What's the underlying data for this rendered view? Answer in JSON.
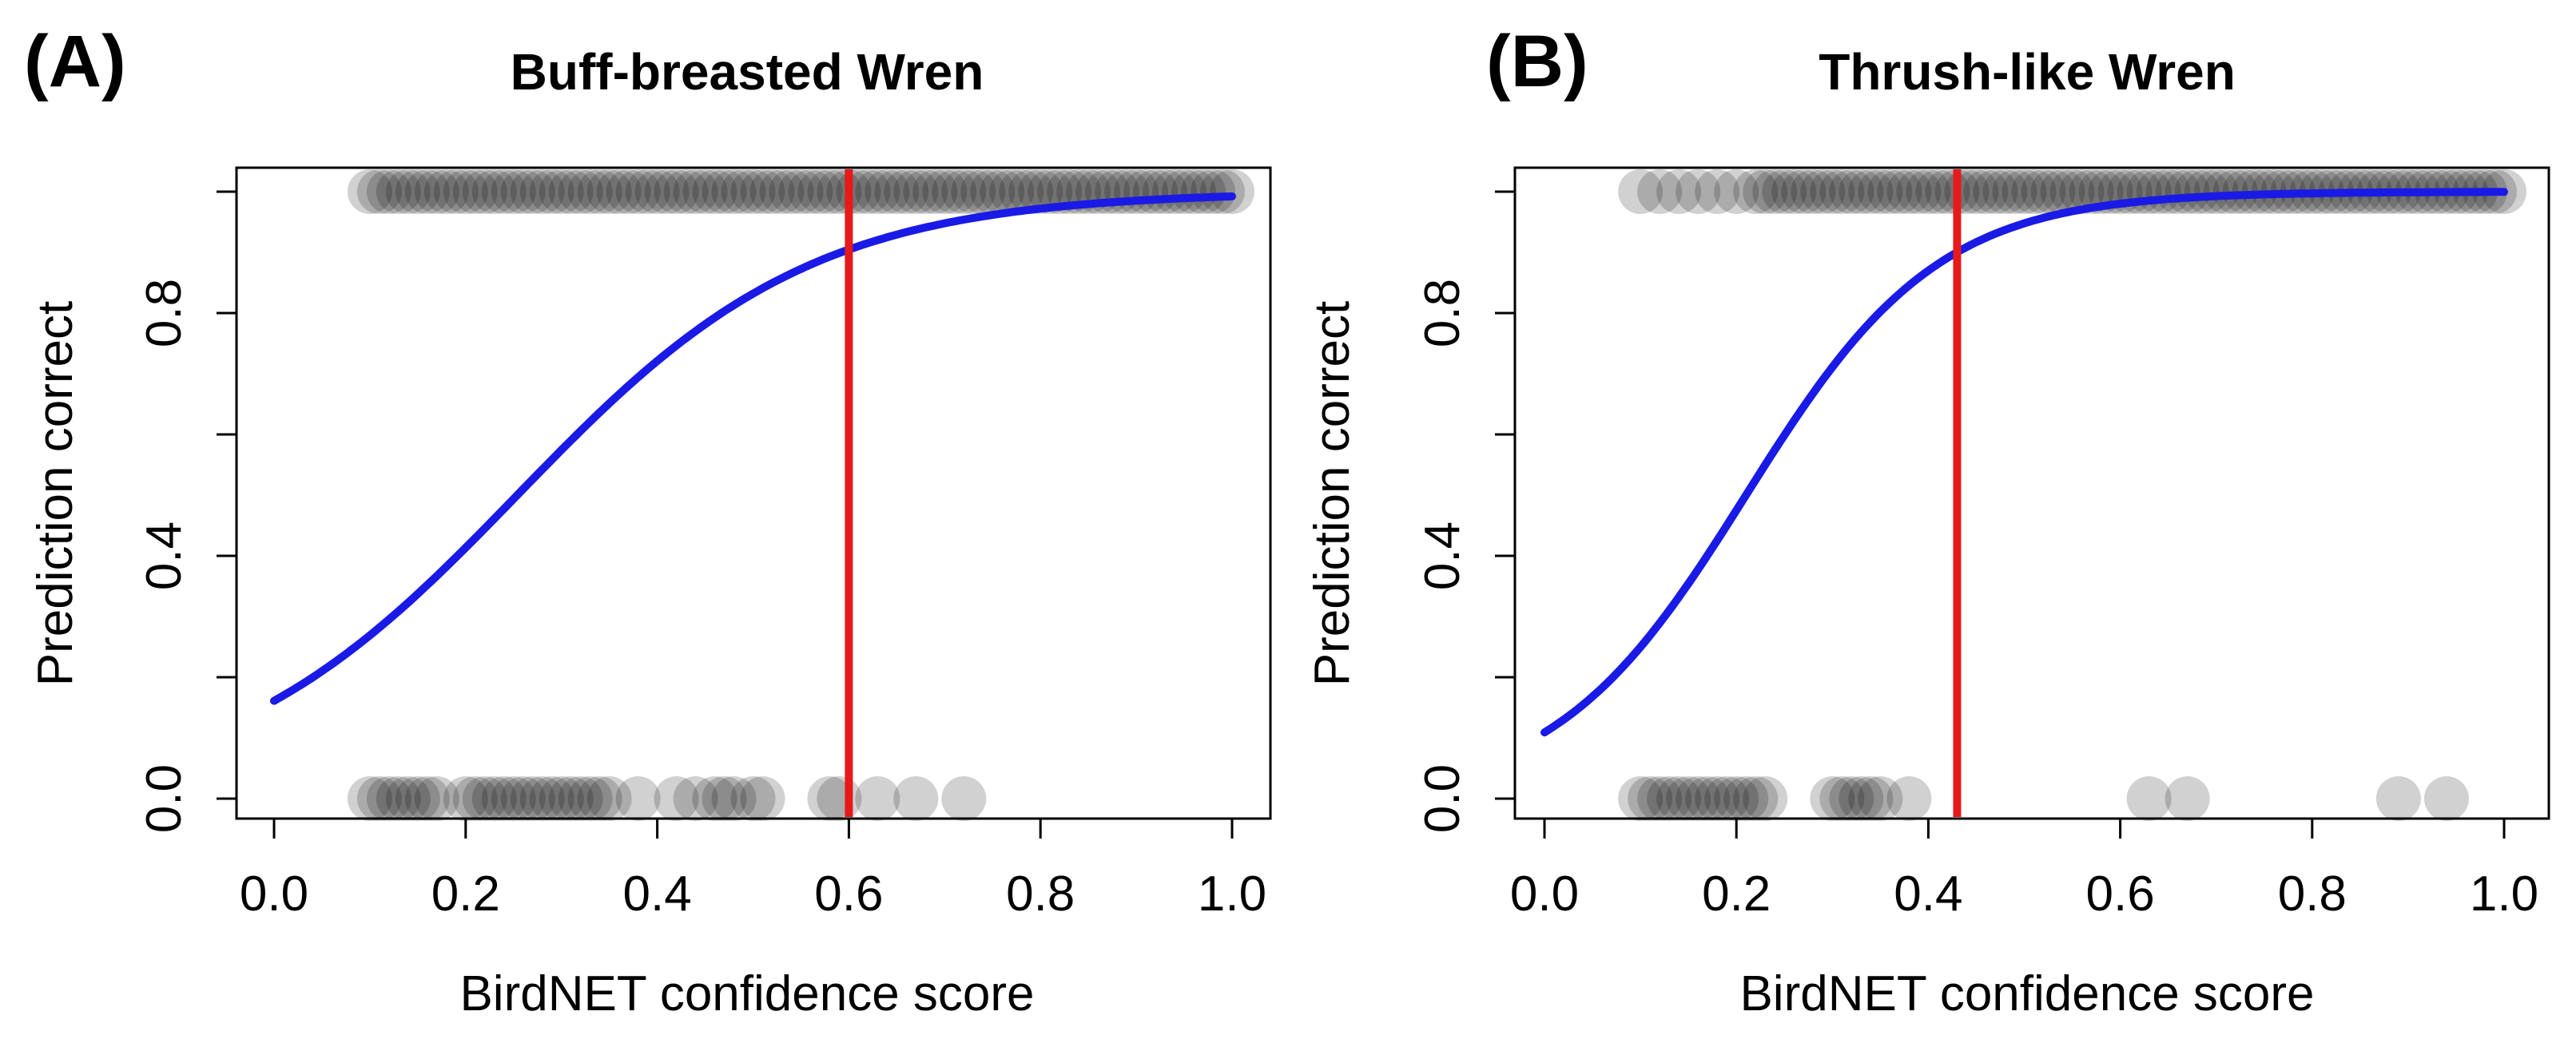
{
  "chart_data": [
    {
      "type": "scatter",
      "panel_label": "(A)",
      "title": "Buff-breasted Wren",
      "xlabel": "BirdNET confidence score",
      "ylabel": "Prediction correct",
      "xlim": [
        0,
        1
      ],
      "ylim": [
        0,
        1
      ],
      "x_ticks": [
        "0.0",
        "0.2",
        "0.4",
        "0.6",
        "0.8",
        "1.0"
      ],
      "y_ticks_labeled": [
        "0.0",
        "0.4",
        "0.8"
      ],
      "threshold_x": 0.6,
      "logistic_fit": {
        "intercept": -1.65,
        "slope": 6.5
      },
      "points_correct": [
        0.1,
        0.11,
        0.12,
        0.13,
        0.14,
        0.15,
        0.16,
        0.17,
        0.18,
        0.19,
        0.2,
        0.21,
        0.22,
        0.23,
        0.24,
        0.25,
        0.26,
        0.27,
        0.28,
        0.29,
        0.3,
        0.31,
        0.32,
        0.33,
        0.34,
        0.35,
        0.36,
        0.37,
        0.38,
        0.39,
        0.4,
        0.41,
        0.42,
        0.43,
        0.44,
        0.45,
        0.46,
        0.47,
        0.48,
        0.49,
        0.5,
        0.51,
        0.52,
        0.53,
        0.54,
        0.55,
        0.56,
        0.57,
        0.58,
        0.59,
        0.6,
        0.61,
        0.62,
        0.63,
        0.64,
        0.65,
        0.66,
        0.67,
        0.68,
        0.69,
        0.7,
        0.71,
        0.72,
        0.73,
        0.74,
        0.75,
        0.76,
        0.77,
        0.78,
        0.79,
        0.8,
        0.81,
        0.82,
        0.83,
        0.84,
        0.85,
        0.86,
        0.87,
        0.88,
        0.89,
        0.9,
        0.91,
        0.92,
        0.93,
        0.94,
        0.95,
        0.96,
        0.97,
        0.98,
        0.99,
        1.0
      ],
      "points_incorrect": [
        0.1,
        0.11,
        0.12,
        0.13,
        0.14,
        0.15,
        0.16,
        0.17,
        0.2,
        0.21,
        0.22,
        0.23,
        0.24,
        0.25,
        0.26,
        0.27,
        0.28,
        0.29,
        0.3,
        0.31,
        0.32,
        0.33,
        0.34,
        0.35,
        0.38,
        0.42,
        0.44,
        0.46,
        0.47,
        0.48,
        0.5,
        0.51,
        0.58,
        0.59,
        0.63,
        0.67,
        0.72
      ]
    },
    {
      "type": "scatter",
      "panel_label": "(B)",
      "title": "Thrush-like Wren",
      "xlabel": "BirdNET confidence score",
      "ylabel": "Prediction correct",
      "xlim": [
        0,
        1
      ],
      "ylim": [
        0,
        1
      ],
      "x_ticks": [
        "0.0",
        "0.2",
        "0.4",
        "0.6",
        "0.8",
        "1.0"
      ],
      "y_ticks_labeled": [
        "0.0",
        "0.4",
        "0.8"
      ],
      "threshold_x": 0.43,
      "logistic_fit": {
        "intercept": -2.1,
        "slope": 10.0
      },
      "points_correct": [
        0.1,
        0.12,
        0.14,
        0.16,
        0.18,
        0.2,
        0.22,
        0.23,
        0.24,
        0.25,
        0.26,
        0.27,
        0.28,
        0.29,
        0.3,
        0.31,
        0.32,
        0.33,
        0.34,
        0.35,
        0.36,
        0.37,
        0.38,
        0.39,
        0.4,
        0.41,
        0.42,
        0.43,
        0.44,
        0.45,
        0.46,
        0.47,
        0.48,
        0.49,
        0.5,
        0.51,
        0.52,
        0.53,
        0.54,
        0.55,
        0.56,
        0.57,
        0.58,
        0.59,
        0.6,
        0.61,
        0.62,
        0.63,
        0.64,
        0.65,
        0.66,
        0.67,
        0.68,
        0.69,
        0.7,
        0.71,
        0.72,
        0.73,
        0.74,
        0.75,
        0.76,
        0.77,
        0.78,
        0.79,
        0.8,
        0.81,
        0.82,
        0.83,
        0.84,
        0.85,
        0.86,
        0.87,
        0.88,
        0.89,
        0.9,
        0.91,
        0.92,
        0.93,
        0.94,
        0.95,
        0.96,
        0.97,
        0.98,
        0.99,
        1.0
      ],
      "points_incorrect": [
        0.1,
        0.11,
        0.12,
        0.13,
        0.14,
        0.15,
        0.16,
        0.17,
        0.18,
        0.19,
        0.2,
        0.21,
        0.22,
        0.23,
        0.3,
        0.31,
        0.32,
        0.33,
        0.34,
        0.35,
        0.38,
        0.63,
        0.67,
        0.89,
        0.94
      ]
    }
  ]
}
